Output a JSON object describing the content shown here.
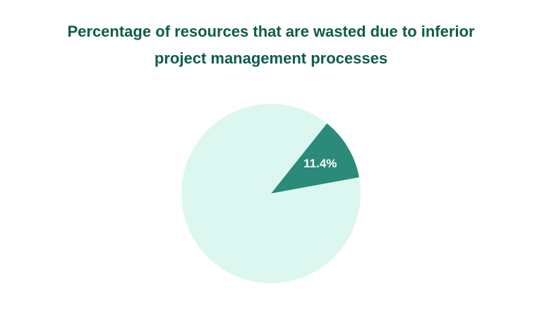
{
  "chart_data": {
    "type": "pie",
    "title_lines": [
      "Percentage of resources that are wasted due to inferior",
      "project management processes"
    ],
    "slices": [
      {
        "label": "11.4%",
        "value": 11.4,
        "color": "#2b8a7a",
        "show_label": true
      },
      {
        "label": "",
        "value": 88.6,
        "color": "#dcf7ef",
        "show_label": false
      }
    ]
  }
}
